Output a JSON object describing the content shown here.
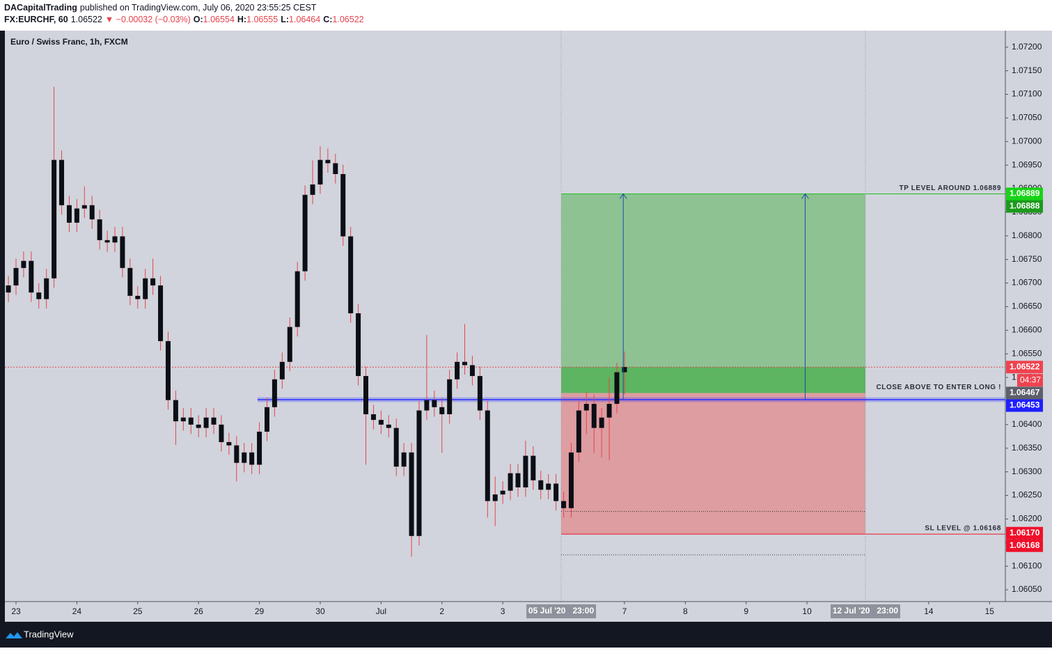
{
  "header": {
    "author": "DACapitalTrading",
    "published": "published on TradingView.com, July 06, 2020 23:55:25 CEST",
    "symbol": "FX:EURCHF, 60",
    "last": 1.06522,
    "change": "▼ −0.00032 (−0.03%)",
    "ohlc": [
      {
        "key": "O:",
        "value": 1.06554
      },
      {
        "key": "H:",
        "value": 1.06555
      },
      {
        "key": "L:",
        "value": 1.06464
      },
      {
        "key": "C:",
        "value": 1.06522
      }
    ]
  },
  "footer": {
    "brand": "TradingView"
  },
  "chart_data": {
    "type": "candlestick",
    "title": "Euro / Swiss Franc, 1h, FXCM",
    "x": [
      -0.125,
      0,
      0.125,
      0.25,
      0.375,
      0.5,
      0.625,
      0.75,
      0.875,
      1,
      1.125,
      1.25,
      1.375,
      1.5,
      1.625,
      1.75,
      1.875,
      2,
      2.125,
      2.25,
      2.375,
      2.5,
      2.625,
      2.75,
      2.875,
      3,
      3.125,
      3.25,
      3.375,
      3.5,
      3.625,
      3.75,
      3.875,
      4,
      4.125,
      4.25,
      4.375,
      4.5,
      4.625,
      4.75,
      4.875,
      5,
      5.125,
      5.25,
      5.375,
      5.5,
      5.625,
      5.75,
      5.875,
      6,
      6.125,
      6.25,
      6.375,
      6.5,
      6.625,
      6.75,
      6.875,
      7,
      7.125,
      7.25,
      7.375,
      7.5,
      7.625,
      7.75,
      7.875,
      8,
      8.125,
      8.25,
      8.375,
      8.5,
      8.625,
      8.75,
      8.875,
      9,
      9.125,
      9.25,
      9.375,
      9.5,
      9.625,
      9.75,
      9.875,
      10
    ],
    "open": [
      1.0668,
      1.06695,
      1.06732,
      1.06747,
      1.0668,
      1.06666,
      1.0671,
      1.06961,
      1.06865,
      1.06828,
      1.06858,
      1.06865,
      1.06835,
      1.06791,
      1.06786,
      1.06799,
      1.06732,
      1.06673,
      1.06666,
      1.0671,
      1.06695,
      1.06577,
      1.06452,
      1.06407,
      1.06415,
      1.064,
      1.06393,
      1.06415,
      1.064,
      1.06363,
      1.06356,
      1.06319,
      1.06341,
      1.06315,
      1.06385,
      1.06437,
      1.06496,
      1.06533,
      1.06607,
      1.06725,
      1.06887,
      1.06909,
      1.06961,
      1.06954,
      1.06931,
      1.06799,
      1.06636,
      1.06503,
      1.06422,
      1.0641,
      1.064,
      1.06393,
      1.06311,
      1.06341,
      1.06164,
      1.0643,
      1.06452,
      1.06437,
      1.06422,
      1.06496,
      1.06533,
      1.06526,
      1.06503,
      1.0643,
      1.06238,
      1.06252,
      1.0626,
      1.06297,
      1.06267,
      1.06334,
      1.06282,
      1.06262,
      1.06275,
      1.06238,
      1.06223,
      1.06341,
      1.0643,
      1.06444,
      1.06393,
      1.06415,
      1.06444,
      1.06511
    ],
    "high": [
      1.06715,
      1.06752,
      1.06767,
      1.06767,
      1.067,
      1.0673,
      1.07116,
      1.06981,
      1.06885,
      1.06878,
      1.06905,
      1.06885,
      1.06855,
      1.06811,
      1.06819,
      1.06819,
      1.06752,
      1.06693,
      1.0673,
      1.06752,
      1.06715,
      1.06597,
      1.06472,
      1.06435,
      1.06435,
      1.0642,
      1.06435,
      1.06435,
      1.0642,
      1.06383,
      1.06376,
      1.06361,
      1.06361,
      1.06405,
      1.06457,
      1.06516,
      1.06553,
      1.06627,
      1.06745,
      1.06907,
      1.0696,
      1.0699,
      1.06985,
      1.06974,
      1.06951,
      1.06819,
      1.06656,
      1.06523,
      1.06442,
      1.0643,
      1.0642,
      1.06413,
      1.06361,
      1.06361,
      1.0645,
      1.0659,
      1.06472,
      1.06457,
      1.06516,
      1.06553,
      1.06613,
      1.06546,
      1.06523,
      1.0645,
      1.0629,
      1.0628,
      1.06317,
      1.06317,
      1.06366,
      1.06354,
      1.06302,
      1.06295,
      1.06295,
      1.06258,
      1.06361,
      1.0645,
      1.0647,
      1.06464,
      1.06435,
      1.065,
      1.06531,
      1.06555
    ],
    "low": [
      1.0666,
      1.06675,
      1.06712,
      1.0666,
      1.06646,
      1.06646,
      1.0669,
      1.06845,
      1.06808,
      1.06808,
      1.06838,
      1.06815,
      1.06771,
      1.06766,
      1.06766,
      1.06712,
      1.06653,
      1.06646,
      1.06646,
      1.06675,
      1.06557,
      1.06432,
      1.06357,
      1.06387,
      1.0638,
      1.06373,
      1.06373,
      1.0638,
      1.06343,
      1.06336,
      1.0628,
      1.06299,
      1.06295,
      1.06295,
      1.06365,
      1.06417,
      1.06476,
      1.06513,
      1.06587,
      1.06705,
      1.06867,
      1.06889,
      1.06934,
      1.06911,
      1.06779,
      1.06616,
      1.06483,
      1.06315,
      1.0639,
      1.0638,
      1.06373,
      1.06291,
      1.06291,
      1.0612,
      1.06144,
      1.0641,
      1.06417,
      1.0634,
      1.06402,
      1.06476,
      1.06506,
      1.06483,
      1.0641,
      1.06203,
      1.06185,
      1.06232,
      1.0624,
      1.06247,
      1.06247,
      1.06262,
      1.06242,
      1.06242,
      1.06218,
      1.06203,
      1.06203,
      1.06321,
      1.0638,
      1.0634,
      1.0633,
      1.06325,
      1.06424,
      1.06464
    ],
    "close": [
      1.06695,
      1.06732,
      1.06747,
      1.0668,
      1.06666,
      1.0671,
      1.06961,
      1.06865,
      1.06828,
      1.06858,
      1.06865,
      1.06835,
      1.06791,
      1.06786,
      1.06799,
      1.06732,
      1.06673,
      1.06666,
      1.0671,
      1.06695,
      1.06577,
      1.06452,
      1.06407,
      1.06415,
      1.064,
      1.06393,
      1.06415,
      1.064,
      1.06363,
      1.06356,
      1.06319,
      1.06341,
      1.06315,
      1.06385,
      1.06437,
      1.06496,
      1.06533,
      1.06607,
      1.06725,
      1.06887,
      1.06909,
      1.06961,
      1.06954,
      1.06931,
      1.06799,
      1.06636,
      1.06503,
      1.06422,
      1.0641,
      1.064,
      1.06393,
      1.06311,
      1.06341,
      1.06164,
      1.0643,
      1.06452,
      1.06437,
      1.06422,
      1.06496,
      1.06533,
      1.06526,
      1.06503,
      1.0643,
      1.06238,
      1.06252,
      1.0626,
      1.06297,
      1.06267,
      1.06334,
      1.06282,
      1.06262,
      1.06275,
      1.06238,
      1.06223,
      1.06341,
      1.0643,
      1.06444,
      1.06393,
      1.06415,
      1.06444,
      1.06511,
      1.06522
    ],
    "body_color": "#0c0e15",
    "wick_color": "#e5424d",
    "xlim": [
      -0.183,
      16.26
    ],
    "xticks": [
      {
        "value": 0,
        "label": "23"
      },
      {
        "value": 1,
        "label": "24"
      },
      {
        "value": 2,
        "label": "25"
      },
      {
        "value": 3,
        "label": "26"
      },
      {
        "value": 4,
        "label": "29"
      },
      {
        "value": 5,
        "label": "30"
      },
      {
        "value": 6,
        "label": "Jul"
      },
      {
        "value": 7,
        "label": "2"
      },
      {
        "value": 8,
        "label": "3"
      },
      {
        "value": 10,
        "label": "7"
      },
      {
        "value": 11,
        "label": "8"
      },
      {
        "value": 12,
        "label": "9"
      },
      {
        "value": 13,
        "label": "10"
      },
      {
        "value": 15,
        "label": "14"
      },
      {
        "value": 16,
        "label": "15"
      }
    ],
    "ylim": [
      1.06025,
      1.07235
    ],
    "yticks": [
      {
        "value": 1.072,
        "label": "1.07200"
      },
      {
        "value": 1.0715,
        "label": "1.07150"
      },
      {
        "value": 1.071,
        "label": "1.07100"
      },
      {
        "value": 1.0705,
        "label": "1.07050"
      },
      {
        "value": 1.07,
        "label": "1.07000"
      },
      {
        "value": 1.0695,
        "label": "1.06950"
      },
      {
        "value": 1.069,
        "label": "1.06900"
      },
      {
        "value": 1.0685,
        "label": "1.06850"
      },
      {
        "value": 1.068,
        "label": "1.06800"
      },
      {
        "value": 1.0675,
        "label": "1.06750"
      },
      {
        "value": 1.067,
        "label": "1.06700"
      },
      {
        "value": 1.0665,
        "label": "1.06650"
      },
      {
        "value": 1.066,
        "label": "1.06600"
      },
      {
        "value": 1.0655,
        "label": "1.06550"
      },
      {
        "value": 1.065,
        "label": "1.06500"
      },
      {
        "value": 1.0645,
        "label": "1.06450"
      },
      {
        "value": 1.064,
        "label": "1.06400"
      },
      {
        "value": 1.0635,
        "label": "1.06350"
      },
      {
        "value": 1.063,
        "label": "1.06300"
      },
      {
        "value": 1.0625,
        "label": "1.06250"
      },
      {
        "value": 1.062,
        "label": "1.06200"
      },
      {
        "value": 1.0615,
        "label": "1.06150"
      },
      {
        "value": 1.061,
        "label": "1.06100"
      },
      {
        "value": 1.0605,
        "label": "1.06050"
      }
    ],
    "position": {
      "x_start": 8.96,
      "x_end": 13.96,
      "entry": 1.06467,
      "target": 1.06889,
      "stop": 1.06168,
      "profit_color": "#8ec293",
      "active_color": "#5db461",
      "loss_color": "#dd9da1",
      "start_label": "05 Jul '20   23:00",
      "end_label": "12 Jul '20   23:00"
    },
    "level": {
      "value": 1.06453,
      "x_start": 3.97,
      "color": "#2a2eff"
    },
    "current_price_color": "#e5424d",
    "dotted_levels": [
      1.06216,
      1.06124
    ],
    "arrows": [
      {
        "x": 9.98,
        "from": 1.06453,
        "to": 1.06889
      },
      {
        "x": 12.97,
        "from": 1.06453,
        "to": 1.06889
      }
    ],
    "annotations": {
      "tp": "TP LEVEL AROUND 1.06889",
      "entry": "CLOSE ABOVE TO ENTER LONG !",
      "sl": "SL LEVEL @ 1.06168"
    },
    "badges": [
      {
        "value": 1.06889,
        "color": "#17d317"
      },
      {
        "value": 1.06888,
        "color": "#1c9b1c"
      },
      {
        "value": 1.06522,
        "color": "#f0424f",
        "countdown": "04:37"
      },
      {
        "value": 1.06467,
        "color": "#5d606b"
      },
      {
        "value": 1.06453,
        "color": "#1f1fff"
      },
      {
        "value": 1.0617,
        "label": "1.06170",
        "color": "#f0102a"
      },
      {
        "value": 1.06168,
        "color": "#f0102a"
      }
    ]
  }
}
